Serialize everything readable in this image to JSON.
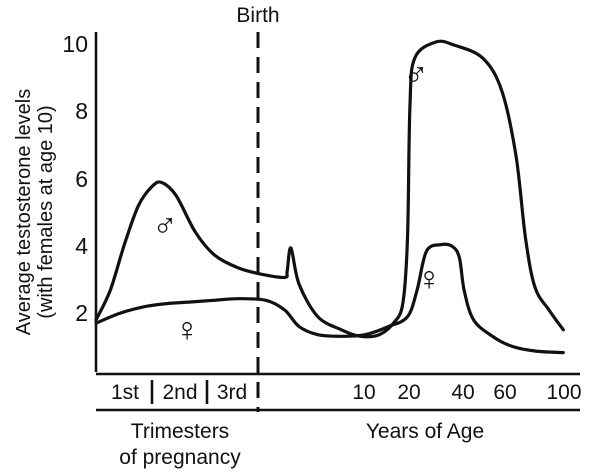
{
  "chart_data": {
    "type": "line",
    "title": "",
    "ylabel_line1": "Average testosterone levels",
    "ylabel_line2": "(with females at age 10)",
    "ylim": [
      0,
      10
    ],
    "yticks": [
      "2",
      "4",
      "6",
      "8",
      "10"
    ],
    "birth_label": "Birth",
    "xgroups": [
      {
        "name": "Trimesters",
        "name_line2": "of pregnancy",
        "ticks": [
          "1st",
          "2nd",
          "3rd"
        ]
      },
      {
        "name": "Years of Age",
        "ticks": [
          "10",
          "20",
          "40",
          "60",
          "100"
        ]
      }
    ],
    "grid": false,
    "series": [
      {
        "symbol": "♂",
        "peaks": {
          "prenatal": 5.7,
          "at_birth": 3.7,
          "adult": 10.0
        },
        "points": [
          [
            0.0,
            1.5
          ],
          [
            0.03,
            2.4
          ],
          [
            0.06,
            3.8
          ],
          [
            0.09,
            5.0
          ],
          [
            0.12,
            5.6
          ],
          [
            0.14,
            5.7
          ],
          [
            0.17,
            5.3
          ],
          [
            0.21,
            4.2
          ],
          [
            0.25,
            3.5
          ],
          [
            0.3,
            3.1
          ],
          [
            0.35,
            2.9
          ],
          [
            0.4,
            2.8
          ],
          [
            0.405,
            3.0
          ],
          [
            0.413,
            3.7
          ],
          [
            0.43,
            2.6
          ],
          [
            0.47,
            1.6
          ],
          [
            0.52,
            1.2
          ],
          [
            0.56,
            1.0
          ],
          [
            0.6,
            1.05
          ],
          [
            0.63,
            1.4
          ],
          [
            0.65,
            2.0
          ],
          [
            0.66,
            4.0
          ],
          [
            0.665,
            8.0
          ],
          [
            0.675,
            9.5
          ],
          [
            0.72,
            10.0
          ],
          [
            0.76,
            9.9
          ],
          [
            0.82,
            9.5
          ],
          [
            0.86,
            8.5
          ],
          [
            0.89,
            6.5
          ],
          [
            0.91,
            4.0
          ],
          [
            0.93,
            2.5
          ],
          [
            0.96,
            1.8
          ],
          [
            0.99,
            1.2
          ]
        ]
      },
      {
        "symbol": "♀",
        "peaks": {
          "prenatal": 2.1,
          "adult": 3.8
        },
        "points": [
          [
            0.0,
            1.4
          ],
          [
            0.05,
            1.7
          ],
          [
            0.1,
            1.9
          ],
          [
            0.15,
            2.0
          ],
          [
            0.2,
            2.05
          ],
          [
            0.25,
            2.1
          ],
          [
            0.3,
            2.15
          ],
          [
            0.36,
            2.1
          ],
          [
            0.4,
            1.8
          ],
          [
            0.43,
            1.3
          ],
          [
            0.47,
            1.05
          ],
          [
            0.52,
            1.0
          ],
          [
            0.57,
            1.05
          ],
          [
            0.62,
            1.3
          ],
          [
            0.66,
            1.6
          ],
          [
            0.68,
            2.4
          ],
          [
            0.7,
            3.6
          ],
          [
            0.73,
            3.8
          ],
          [
            0.755,
            3.75
          ],
          [
            0.77,
            3.4
          ],
          [
            0.78,
            2.4
          ],
          [
            0.8,
            1.5
          ],
          [
            0.84,
            1.0
          ],
          [
            0.88,
            0.7
          ],
          [
            0.93,
            0.55
          ],
          [
            0.99,
            0.5
          ]
        ]
      }
    ]
  }
}
